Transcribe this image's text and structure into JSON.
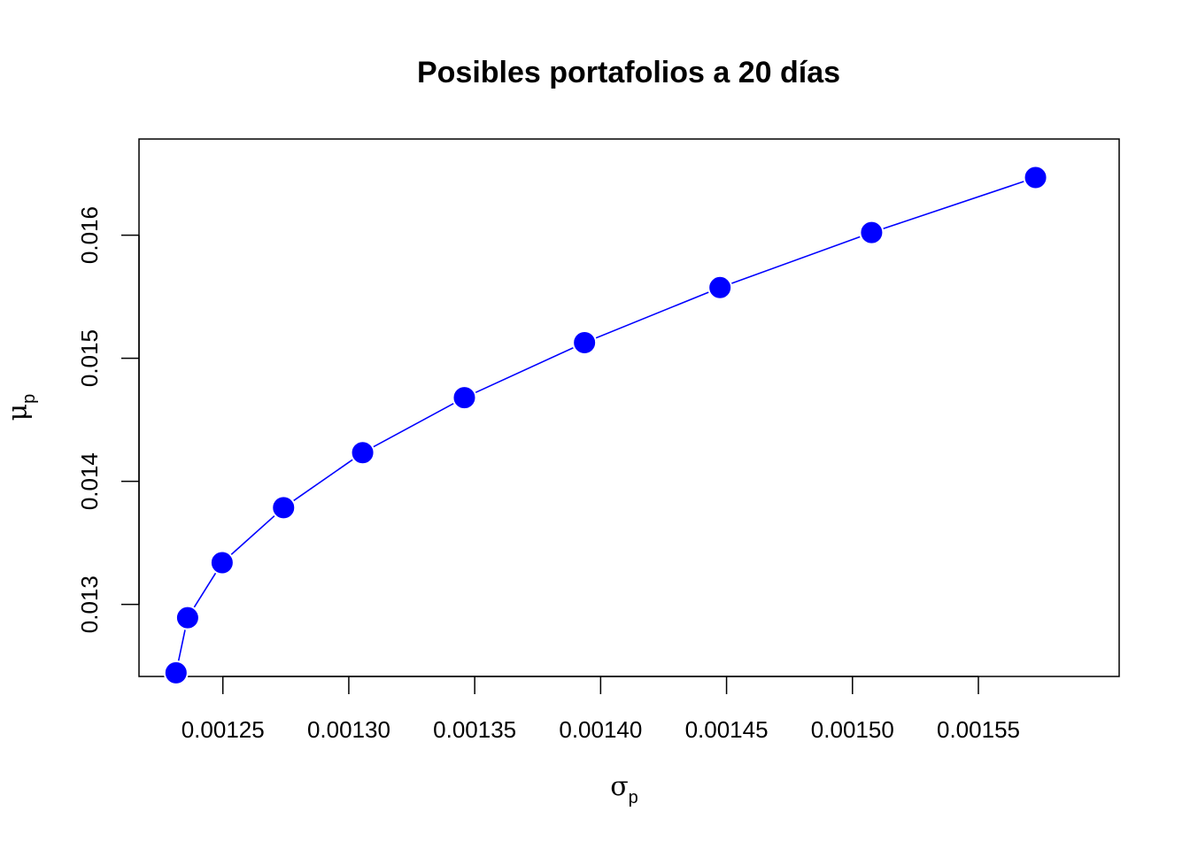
{
  "chart_data": {
    "type": "line",
    "title": "Posibles portafolios a 20 días",
    "xlabel": {
      "symbol": "σ",
      "subscript": "p"
    },
    "ylabel": {
      "symbol": "μ",
      "subscript": "p"
    },
    "xlim": [
      0.0012167,
      0.0016059
    ],
    "ylim": [
      0.012415,
      0.016781
    ],
    "x_ticks": [
      0.00125,
      0.0013,
      0.00135,
      0.0014,
      0.00145,
      0.0015,
      0.00155
    ],
    "x_tick_labels": [
      "0.00125",
      "0.00130",
      "0.00135",
      "0.00140",
      "0.00145",
      "0.00150",
      "0.00155"
    ],
    "y_ticks": [
      0.013,
      0.014,
      0.015,
      0.016
    ],
    "y_tick_labels": [
      "0.013",
      "0.014",
      "0.015",
      "0.016"
    ],
    "grid": false,
    "line_color": "#0000ff",
    "marker_color": "#0000ff",
    "series": [
      {
        "x": [
          0.0012314,
          0.001236,
          0.0012497,
          0.0012741,
          0.0013055,
          0.0013459,
          0.0013936,
          0.0014474,
          0.0015076,
          0.0015727
        ],
        "y": [
          0.012445,
          0.012892,
          0.013339,
          0.013786,
          0.014233,
          0.01468,
          0.015127,
          0.015574,
          0.016021,
          0.016468
        ]
      }
    ]
  }
}
